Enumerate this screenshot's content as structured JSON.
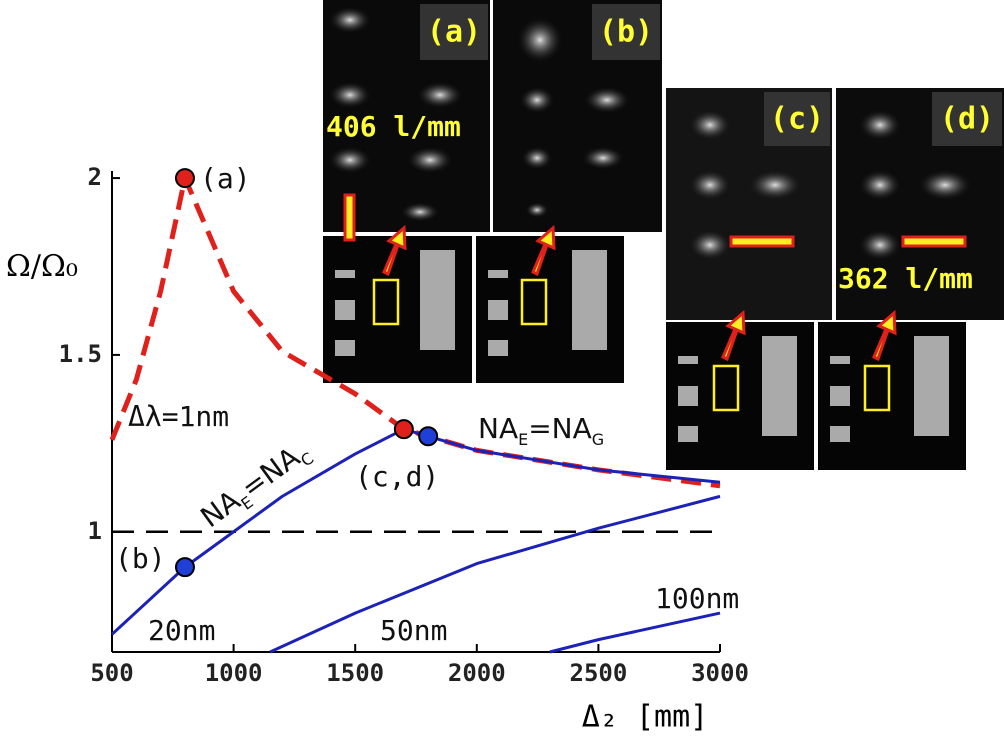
{
  "chart_data": {
    "type": "line",
    "xlabel": "Δ₂ [mm]",
    "ylabel": "Ω/Ω₀",
    "xlim": [
      500,
      3000
    ],
    "xticks": [
      500,
      1000,
      1500,
      2000,
      2500,
      3000
    ],
    "ylim": [
      0.66,
      2.02
    ],
    "yticks": [
      1,
      1.5,
      2
    ],
    "hline": 1,
    "series": [
      {
        "color": "#e0201b",
        "style": "dashed",
        "x": [
          500,
          600,
          700,
          800,
          1000,
          1200,
          1500,
          1700,
          2000,
          2500,
          3000
        ],
        "values": [
          1.26,
          1.43,
          1.68,
          2.0,
          1.68,
          1.51,
          1.39,
          1.29,
          1.23,
          1.175,
          1.13
        ]
      },
      {
        "color": "#1c22b8",
        "style": "solid",
        "x": [
          500,
          800,
          1000,
          1200,
          1500,
          1700,
          2000,
          2500,
          3000
        ],
        "values": [
          0.71,
          0.9,
          1.0,
          1.1,
          1.22,
          1.29,
          1.23,
          1.175,
          1.14
        ]
      },
      {
        "color": "#1c22b8",
        "style": "solid",
        "x": [
          1150,
          1500,
          2000,
          2500,
          3000
        ],
        "values": [
          0.66,
          0.77,
          0.91,
          1.01,
          1.1
        ]
      },
      {
        "color": "#1c22b8",
        "style": "solid",
        "x": [
          2300,
          2500,
          3000
        ],
        "values": [
          0.66,
          0.695,
          0.77
        ]
      }
    ],
    "markers": [
      {
        "x": 800,
        "y": 2.0,
        "color": "#e0201b"
      },
      {
        "x": 800,
        "y": 0.9,
        "color": "#1f3fd6"
      },
      {
        "x": 1700,
        "y": 1.29,
        "color": "#e0201b"
      },
      {
        "x": 1800,
        "y": 1.27,
        "color": "#1f3fd6"
      }
    ],
    "annotations": [
      {
        "text": [
          "(a)"
        ],
        "color": "#111"
      },
      {
        "text": [
          "(b)"
        ],
        "color": "#111"
      },
      {
        "text": [
          "(c,d)"
        ],
        "color": "#111"
      },
      {
        "text": [
          "Δλ=1nm"
        ],
        "color": "#111"
      },
      {
        "text": [
          "NA",
          "E",
          "=NA",
          "C"
        ],
        "color": "#1c22b8"
      },
      {
        "text": [
          "NA",
          "E",
          "=NA",
          "G"
        ],
        "color": "#e0201b"
      },
      {
        "text": [
          "20nm"
        ],
        "color": "#111"
      },
      {
        "text": [
          "50nm"
        ],
        "color": "#111"
      },
      {
        "text": [
          "100nm"
        ],
        "color": "#111"
      }
    ]
  },
  "insets": [
    {
      "label": "(a)",
      "note": "406 l/mm"
    },
    {
      "label": "(b)"
    },
    {
      "label": "(c)"
    },
    {
      "label": "(d)",
      "note": "362 l/mm"
    }
  ]
}
